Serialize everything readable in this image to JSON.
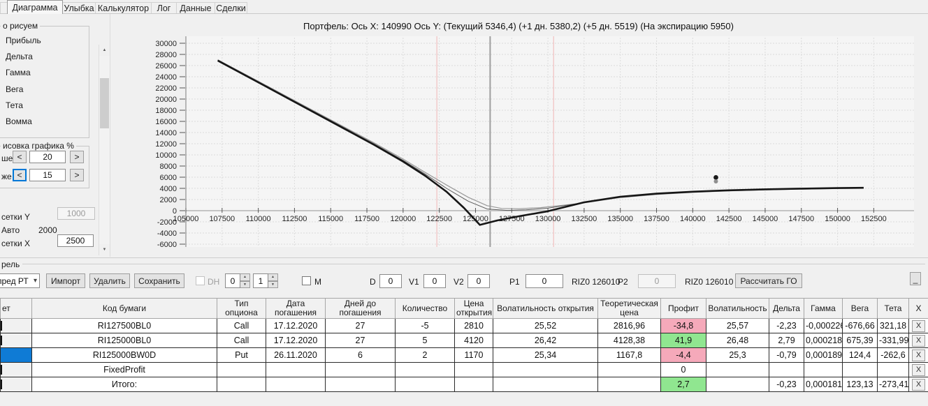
{
  "tabs": {
    "items": [
      {
        "label": "Диаграмма",
        "active": true
      },
      {
        "label": "Улыбка",
        "active": false
      },
      {
        "label": "Калькулятор",
        "active": false
      },
      {
        "label": "Лог",
        "active": false
      },
      {
        "label": "Данные",
        "active": false
      },
      {
        "label": "Сделки",
        "active": false
      }
    ]
  },
  "sidebar": {
    "draw_group_label": "о рисуем",
    "draw_items": [
      "Прибыль",
      "Дельта",
      "Гамма",
      "Вега",
      "Тета",
      "Вомма"
    ],
    "render_group_label": "исовка графика %",
    "above_label": "ше",
    "above_value": "20",
    "below_label": "же",
    "below_value": "15",
    "dec_label": "<",
    "inc_label": ">",
    "grid_y_label": "сетки Y",
    "grid_y_value": "1000",
    "auto_label": "Авто",
    "auto_value": "2000",
    "grid_x_label": "сетки X",
    "grid_x_value": "2500"
  },
  "icons": {
    "scroll_up": "▲",
    "scroll_down": "▼",
    "spin_up": "▲",
    "spin_down": "▼",
    "combo_arrow": "▾"
  },
  "toolbar": {
    "group_label": "рель",
    "combo_value": "пред РТ",
    "import_button": "Импорт",
    "delete_button": "Удалить",
    "save_button": "Сохранить",
    "dh_label": "DH",
    "spin1_value": "0",
    "spin2_value": "1",
    "m_label": "М",
    "d_label": "D",
    "d_value": "0",
    "v1_label": "V1",
    "v1_value": "0",
    "v2_label": "V2",
    "v2_value": "0",
    "p1_label": "P1",
    "p1_value": "0",
    "p1_instrument": "RIZ0 126010",
    "p2_label": "P2",
    "p2_value": "0",
    "p2_instrument": "RIZ0 126010",
    "calc_button": "Рассчитать ГО",
    "minimize_button": "_"
  },
  "table": {
    "x_label": "X",
    "headers": [
      "ет",
      "Код бумаги",
      "Тип опциона",
      "Дата погашения",
      "Дней до погашения",
      "Количество",
      "Цена открытия",
      "Волатильность открытия",
      "Теоретическая цена",
      "Профит",
      "Волатильность",
      "Дельта",
      "Гамма",
      "Вега",
      "Тета",
      "X"
    ],
    "rows": [
      {
        "cells": [
          "RI127500BL0",
          "Call",
          "17.12.2020",
          "27",
          "-5",
          "2810",
          "25,52",
          "2816,96",
          "-34,8",
          "25,57",
          "-2,23",
          "-0,000226",
          "-676,66",
          "321,18"
        ],
        "profit": "neg",
        "selected": false
      },
      {
        "cells": [
          "RI125000BL0",
          "Call",
          "17.12.2020",
          "27",
          "5",
          "4120",
          "26,42",
          "4128,38",
          "41,9",
          "26,48",
          "2,79",
          "0,000218",
          "675,39",
          "-331,99"
        ],
        "profit": "pos",
        "selected": false
      },
      {
        "cells": [
          "RI125000BW0D",
          "Put",
          "26.11.2020",
          "6",
          "2",
          "1170",
          "25,34",
          "1167,8",
          "-4,4",
          "25,3",
          "-0,79",
          "0,000189",
          "124,4",
          "-262,6"
        ],
        "profit": "neg",
        "selected": true
      },
      {
        "cells": [
          "FixedProfit",
          "",
          "",
          "",
          "",
          "",
          "",
          "",
          "0",
          "",
          "",
          "",
          "",
          ""
        ],
        "profit": "none",
        "selected": false
      },
      {
        "cells": [
          "Итого:",
          "",
          "",
          "",
          "",
          "",
          "",
          "",
          "2,7",
          "",
          "-0,23",
          "0,000181",
          "123,13",
          "-273,41"
        ],
        "profit": "pos",
        "selected": false
      }
    ]
  },
  "chart_data": {
    "type": "line",
    "title": "Портфель: Ось X: 140990 Ось Y:  (Текущий 5346,4)  (+1 дн. 5380,2)  (+5 дн. 5519)  (На экспирацию 5950)",
    "cursor_x": 140990,
    "cursor_values": {
      "current": "5346,4",
      "plus1d": "5380,2",
      "plus5d": "5519",
      "expiration": "5950"
    },
    "xlim": [
      105000,
      154750
    ],
    "ylim": [
      -6000,
      30000
    ],
    "x_ticks": [
      105000,
      107500,
      110000,
      112500,
      115000,
      117500,
      120000,
      122500,
      125000,
      127500,
      130000,
      132500,
      135000,
      137500,
      140000,
      142500,
      145000,
      147500,
      150000,
      152500
    ],
    "y_ticks": [
      -6000,
      -4000,
      -2000,
      0,
      2000,
      4000,
      6000,
      8000,
      10000,
      12000,
      14000,
      16000,
      18000,
      20000,
      22000,
      24000,
      26000,
      28000,
      30000
    ],
    "grid": true,
    "vlines": [
      {
        "x": 122330,
        "color": "#f0b6b6",
        "width": 1
      },
      {
        "x": 130390,
        "color": "#f0b6b6",
        "width": 1
      },
      {
        "x": 126010,
        "color": "#9e9e9e",
        "width": 2
      }
    ],
    "series": [
      {
        "name": "current",
        "color": "#9a9a9a",
        "width": 1.2,
        "points": [
          [
            107200,
            27050
          ],
          [
            110000,
            23200
          ],
          [
            113000,
            19050
          ],
          [
            116000,
            14900
          ],
          [
            118000,
            12150
          ],
          [
            120000,
            9250
          ],
          [
            121500,
            6900
          ],
          [
            123000,
            4600
          ],
          [
            124500,
            2400
          ],
          [
            125800,
            900
          ],
          [
            126800,
            400
          ],
          [
            128000,
            350
          ],
          [
            129500,
            550
          ],
          [
            131000,
            950
          ],
          [
            132500,
            1400
          ],
          [
            135000,
            2350
          ],
          [
            137500,
            2900
          ],
          [
            140000,
            3280
          ],
          [
            142500,
            3550
          ],
          [
            145000,
            3720
          ],
          [
            147500,
            3860
          ],
          [
            150000,
            3960
          ],
          [
            151800,
            4010
          ]
        ]
      },
      {
        "name": "plus5days",
        "color": "#5a5a5a",
        "width": 1,
        "points": [
          [
            107200,
            26980
          ],
          [
            110000,
            23100
          ],
          [
            113000,
            18930
          ],
          [
            116000,
            14750
          ],
          [
            118000,
            11980
          ],
          [
            120000,
            9030
          ],
          [
            121500,
            6600
          ],
          [
            123000,
            4000
          ],
          [
            124500,
            1700
          ],
          [
            125800,
            300
          ],
          [
            127200,
            50
          ],
          [
            128500,
            150
          ],
          [
            130000,
            450
          ],
          [
            132500,
            1450
          ],
          [
            135000,
            2430
          ],
          [
            137500,
            2980
          ],
          [
            140000,
            3340
          ],
          [
            142500,
            3600
          ],
          [
            145000,
            3770
          ],
          [
            147500,
            3910
          ],
          [
            150000,
            4010
          ],
          [
            151800,
            4060
          ]
        ]
      },
      {
        "name": "expiration",
        "color": "#161616",
        "width": 2.6,
        "points": [
          [
            107200,
            26900
          ],
          [
            110000,
            23000
          ],
          [
            113000,
            18800
          ],
          [
            116000,
            14600
          ],
          [
            118000,
            11800
          ],
          [
            120000,
            8800
          ],
          [
            121500,
            6300
          ],
          [
            123000,
            3400
          ],
          [
            124200,
            500
          ],
          [
            125300,
            -2550
          ],
          [
            126500,
            -1750
          ],
          [
            128000,
            -1000
          ],
          [
            130000,
            -100
          ],
          [
            132500,
            1500
          ],
          [
            135000,
            2500
          ],
          [
            137500,
            3050
          ],
          [
            140000,
            3400
          ],
          [
            142500,
            3650
          ],
          [
            145000,
            3820
          ],
          [
            147500,
            3950
          ],
          [
            150000,
            4050
          ],
          [
            151800,
            4100
          ]
        ]
      }
    ],
    "markers": [
      {
        "x": 141600,
        "y": 5950,
        "r": 3.4,
        "color": "#1a1a1a"
      },
      {
        "x": 141600,
        "y": 5250,
        "r": 3.0,
        "color": "#8f8f8f"
      }
    ]
  }
}
